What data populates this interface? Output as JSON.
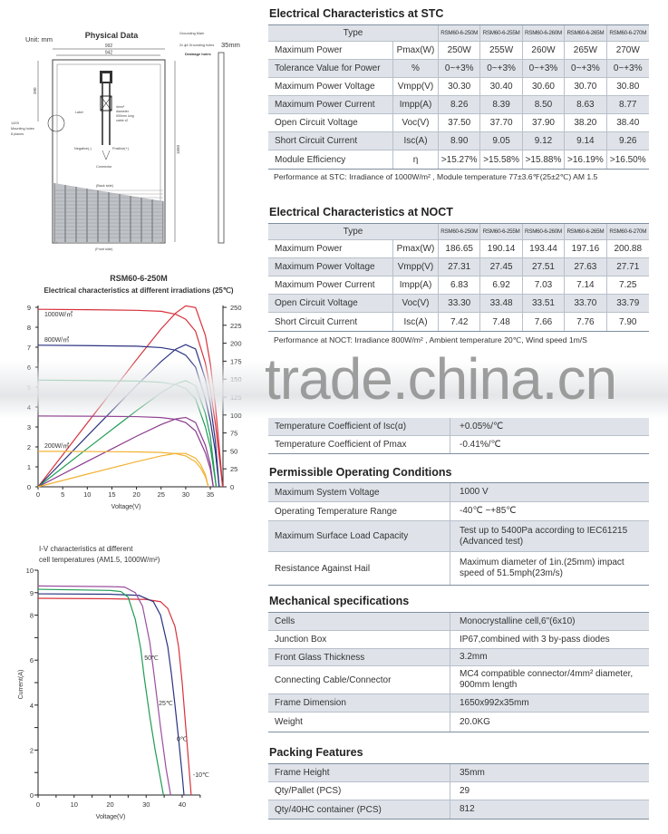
{
  "physical": {
    "title": "Physical Data",
    "unit": "Unit: mm",
    "width_outer": "992",
    "width_inner": "942",
    "thickness": "35mm",
    "dim_390": "390",
    "dim_1650": "1650",
    "grounding_mark": "Grounding Mark",
    "grounding_holes": "2x ϕ4 Grounding holes",
    "drainage": "Drainage holes",
    "mounting": [
      "14X9",
      "Mounting holes",
      "8 places"
    ],
    "label": "Label",
    "cable": [
      "4mm²",
      "diameter",
      "900mm long",
      "cable x2"
    ],
    "negative": "Negative(-)",
    "positive": "Positive(+)",
    "connector": "Connector",
    "back": "(Back side)",
    "front": "(Front side)"
  },
  "stc": {
    "title": "Electrical Characteristics at STC",
    "type_label": "Type",
    "models": [
      "RSM60-6-250M",
      "RSM60-6-255M",
      "RSM60-6-260M",
      "RSM60-6-265M",
      "RSM60-6-270M"
    ],
    "rows": [
      {
        "label": "Maximum Power",
        "unit": "Pmax(W)",
        "values": [
          "250W",
          "255W",
          "260W",
          "265W",
          "270W"
        ]
      },
      {
        "label": "Tolerance Value for Power",
        "unit": "%",
        "values": [
          "0~+3%",
          "0~+3%",
          "0~+3%",
          "0~+3%",
          "0~+3%"
        ]
      },
      {
        "label": "Maximum Power Voltage",
        "unit": "Vmpp(V)",
        "values": [
          "30.30",
          "30.40",
          "30.60",
          "30.70",
          "30.80"
        ]
      },
      {
        "label": "Maximum Power Current",
        "unit": "Impp(A)",
        "values": [
          "8.26",
          "8.39",
          "8.50",
          "8.63",
          "8.77"
        ]
      },
      {
        "label": "Open Circuit Voltage",
        "unit": "Voc(V)",
        "values": [
          "37.50",
          "37.70",
          "37.90",
          "38.20",
          "38.40"
        ]
      },
      {
        "label": "Short Circuit Current",
        "unit": "Isc(A)",
        "values": [
          "8.90",
          "9.05",
          "9.12",
          "9.14",
          "9.26"
        ]
      },
      {
        "label": "Module Efficiency",
        "unit": "η",
        "values": [
          ">15.27%",
          ">15.58%",
          ">15.88%",
          ">16.19%",
          ">16.50%"
        ]
      }
    ],
    "note": "Performance at STC: Irradiance of 1000W/m² , Module temperature 77±3.6℉(25±2℃)  AM 1.5"
  },
  "noct": {
    "title": "Electrical Characteristics at NOCT",
    "type_label": "Type",
    "models": [
      "RSM60-6-250M",
      "RSM60-6-255M",
      "RSM60-6-260M",
      "RSM60-6-265M",
      "RSM60-6-270M"
    ],
    "rows": [
      {
        "label": "Maximum Power",
        "unit": "Pmax(W)",
        "values": [
          "186.65",
          "190.14",
          "193.44",
          "197.16",
          "200.88"
        ]
      },
      {
        "label": "Maximum Power Voltage",
        "unit": "Vmpp(V)",
        "values": [
          "27.31",
          "27.45",
          "27.51",
          "27.63",
          "27.71"
        ]
      },
      {
        "label": "Maximum Power Current",
        "unit": "Impp(A)",
        "values": [
          "6.83",
          "6.92",
          "7.03",
          "7.14",
          "7.25"
        ]
      },
      {
        "label": "Open Circuit Voltage",
        "unit": "Voc(V)",
        "values": [
          "33.30",
          "33.48",
          "33.51",
          "33.70",
          "33.79"
        ]
      },
      {
        "label": "Short Circuit Current",
        "unit": "Isc(A)",
        "values": [
          "7.42",
          "7.48",
          "7.66",
          "7.76",
          "7.90"
        ]
      }
    ],
    "note": "Performance at NOCT: Irradiance 800W/m² , Ambient temperature 20℃, Wind speed 1m/S"
  },
  "temperature": {
    "rows": [
      {
        "label": "Temperature Coefficient of Isc(α)",
        "value": "+0.05%/℃"
      },
      {
        "label": "Temperature Coefficient of Pmax",
        "value": "-0.41%/℃"
      }
    ]
  },
  "operating": {
    "title": "Permissible Operating Conditions",
    "rows": [
      {
        "label": "Maximum System Voltage",
        "value": "1000 V"
      },
      {
        "label": "Operating Temperature Range",
        "value": "-40℃ ~+85℃"
      },
      {
        "label": "Maximum Surface Load Capacity",
        "value": "Test up to 5400Pa according to IEC61215 (Advanced test)"
      },
      {
        "label": "Resistance Against Hail",
        "value": "Maximum diameter of 1in.(25mm) impact speed of 51.5mph(23m/s)"
      }
    ]
  },
  "mechanical": {
    "title": "Mechanical specifications",
    "rows": [
      {
        "label": "Cells",
        "value": "Monocrystalline cell,6\"(6x10)"
      },
      {
        "label": "Junction Box",
        "value": "IP67,combined with 3 by-pass diodes"
      },
      {
        "label": "Front Glass Thickness",
        "value": "3.2mm"
      },
      {
        "label": "Connecting Cable/Connector",
        "value": "MC4 compatible connector/4mm² diameter, 900mm length"
      },
      {
        "label": "Frame Dimension",
        "value": "1650x992x35mm"
      },
      {
        "label": "Weight",
        "value": "20.0KG"
      }
    ]
  },
  "packing": {
    "title": "Packing Features",
    "rows": [
      {
        "label": "Frame Height",
        "value": "35mm"
      },
      {
        "label": "Qty/Pallet (PCS)",
        "value": "29"
      },
      {
        "label": "Qty/40HC container (PCS)",
        "value": "812"
      }
    ]
  },
  "watermark": "trade.china.cn",
  "chart_data": [
    {
      "type": "line",
      "title": "RSM60-6-250M",
      "subtitle": "Electrical characteristics at different irradiations (25℃)",
      "xlabel": "Voltage(V)",
      "xlim": [
        0,
        37.5
      ],
      "ylim": [
        0,
        9
      ],
      "y2lim": [
        0,
        250
      ],
      "xticks": [
        0,
        5,
        10,
        15,
        20,
        25,
        30,
        35
      ],
      "yticks": [
        0,
        1,
        2,
        3,
        4,
        5,
        6,
        7,
        8,
        9
      ],
      "y2ticks": [
        0,
        25,
        50,
        75,
        100,
        125,
        150,
        175,
        200,
        225,
        250
      ],
      "series": [
        {
          "name": "1000W/㎡",
          "color": "#d8323c",
          "points": [
            [
              0,
              8.9
            ],
            [
              10,
              8.88
            ],
            [
              20,
              8.85
            ],
            [
              25,
              8.8
            ],
            [
              28,
              8.65
            ],
            [
              30,
              8.4
            ],
            [
              32,
              7.8
            ],
            [
              34,
              6.2
            ],
            [
              35,
              4.9
            ],
            [
              36,
              3.2
            ],
            [
              37,
              1.1
            ],
            [
              37.5,
              0
            ]
          ]
        },
        {
          "name": "800W/㎡",
          "color": "#2b3380",
          "points": [
            [
              0,
              7.1
            ],
            [
              10,
              7.08
            ],
            [
              20,
              7.05
            ],
            [
              25,
              6.98
            ],
            [
              28,
              6.85
            ],
            [
              30,
              6.6
            ],
            [
              32,
              6.0
            ],
            [
              34,
              4.4
            ],
            [
              35,
              3.3
            ],
            [
              36,
              1.8
            ],
            [
              36.8,
              0
            ]
          ]
        },
        {
          "name": "",
          "color": "#1f9c55",
          "points": [
            [
              0,
              5.35
            ],
            [
              10,
              5.33
            ],
            [
              20,
              5.3
            ],
            [
              25,
              5.24
            ],
            [
              28,
              5.12
            ],
            [
              30,
              4.93
            ],
            [
              32,
              4.4
            ],
            [
              34,
              3.0
            ],
            [
              35,
              2.0
            ],
            [
              36.2,
              0
            ]
          ]
        },
        {
          "name": "",
          "color": "#8b3a8e",
          "points": [
            [
              0,
              3.55
            ],
            [
              10,
              3.54
            ],
            [
              20,
              3.52
            ],
            [
              25,
              3.47
            ],
            [
              28,
              3.38
            ],
            [
              30,
              3.22
            ],
            [
              32,
              2.8
            ],
            [
              34,
              1.7
            ],
            [
              35,
              0.9
            ],
            [
              35.6,
              0
            ]
          ]
        },
        {
          "name": "200W/㎡",
          "color": "#f2b233",
          "points": [
            [
              0,
              1.78
            ],
            [
              10,
              1.77
            ],
            [
              20,
              1.75
            ],
            [
              25,
              1.72
            ],
            [
              28,
              1.66
            ],
            [
              30,
              1.55
            ],
            [
              32,
              1.25
            ],
            [
              33,
              0.95
            ],
            [
              34,
              0.5
            ],
            [
              34.6,
              0
            ]
          ]
        }
      ]
    },
    {
      "type": "line",
      "title": "I-V characteristics at different cell temperatures (AM1.5, 1000W/m²)",
      "xlabel": "Voltage(V)",
      "ylabel": "Current(A)",
      "xlim": [
        0,
        45
      ],
      "ylim": [
        0,
        10
      ],
      "xticks": [
        0,
        10,
        20,
        30,
        40
      ],
      "yticks": [
        0,
        2,
        4,
        6,
        8,
        9,
        10
      ],
      "series": [
        {
          "name": "-10℃",
          "color": "#d8323c",
          "points": [
            [
              0,
              8.75
            ],
            [
              20,
              8.73
            ],
            [
              30,
              8.7
            ],
            [
              34,
              8.6
            ],
            [
              36,
              8.3
            ],
            [
              38,
              7.5
            ],
            [
              39,
              6.6
            ],
            [
              40,
              5
            ],
            [
              41,
              3
            ],
            [
              42,
              1
            ],
            [
              42.5,
              0
            ]
          ]
        },
        {
          "name": "0℃",
          "color": "#2b3380",
          "points": [
            [
              0,
              8.95
            ],
            [
              20,
              8.93
            ],
            [
              28,
              8.88
            ],
            [
              32,
              8.6
            ],
            [
              34,
              8.0
            ],
            [
              36,
              6.6
            ],
            [
              37,
              5.4
            ],
            [
              38,
              4
            ],
            [
              39,
              2.5
            ],
            [
              40,
              0.9
            ],
            [
              40.5,
              0
            ]
          ]
        },
        {
          "name": "25℃",
          "color": "#9b4fa0",
          "points": [
            [
              0,
              9.3
            ],
            [
              20,
              9.27
            ],
            [
              24,
              9.25
            ],
            [
              27,
              9.0
            ],
            [
              29,
              8.4
            ],
            [
              31,
              6.8
            ],
            [
              32,
              5.6
            ],
            [
              33,
              4.3
            ],
            [
              34,
              3
            ],
            [
              35.5,
              1.2
            ],
            [
              36.8,
              0
            ]
          ]
        },
        {
          "name": "50℃",
          "color": "#1f9c55",
          "points": [
            [
              0,
              9.15
            ],
            [
              20,
              9.1
            ],
            [
              23,
              9.05
            ],
            [
              25,
              8.8
            ],
            [
              27,
              7.8
            ],
            [
              28.5,
              6.5
            ],
            [
              29.5,
              5.2
            ],
            [
              31,
              3.5
            ],
            [
              32.5,
              2
            ],
            [
              34,
              0.7
            ],
            [
              34.8,
              0
            ]
          ]
        }
      ]
    }
  ]
}
